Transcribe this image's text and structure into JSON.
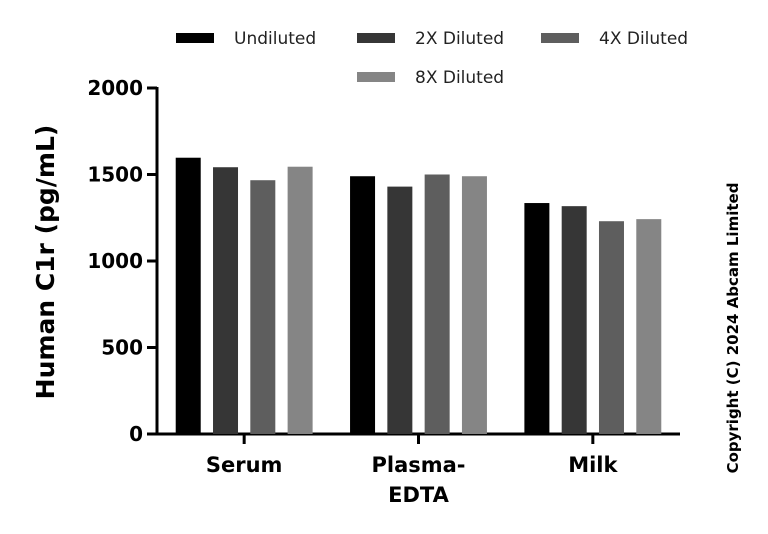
{
  "chart_data": {
    "type": "bar",
    "categories": [
      "Serum",
      "Plasma-EDTA",
      "Milk"
    ],
    "category_label_lines": [
      [
        "Serum"
      ],
      [
        "Plasma-",
        "EDTA"
      ],
      [
        "Milk"
      ]
    ],
    "series": [
      {
        "name": "Undiluted",
        "color": "#000000",
        "values": [
          1597,
          1490,
          1335
        ]
      },
      {
        "name": "2X Diluted",
        "color": "#363636",
        "values": [
          1542,
          1430,
          1317
        ]
      },
      {
        "name": "4X Diluted",
        "color": "#5e5e5e",
        "values": [
          1467,
          1500,
          1230
        ]
      },
      {
        "name": "8X Diluted",
        "color": "#858585",
        "values": [
          1545,
          1490,
          1242
        ]
      }
    ],
    "ylabel": "Human C1r (pg/mL)",
    "xlabel": "",
    "ylim": [
      0,
      2000
    ],
    "yticks": [
      0,
      500,
      1000,
      1500,
      2000
    ],
    "grid": false,
    "legend_position": "top"
  },
  "copyright": "Copyright (C) 2024 Abcam Limited"
}
